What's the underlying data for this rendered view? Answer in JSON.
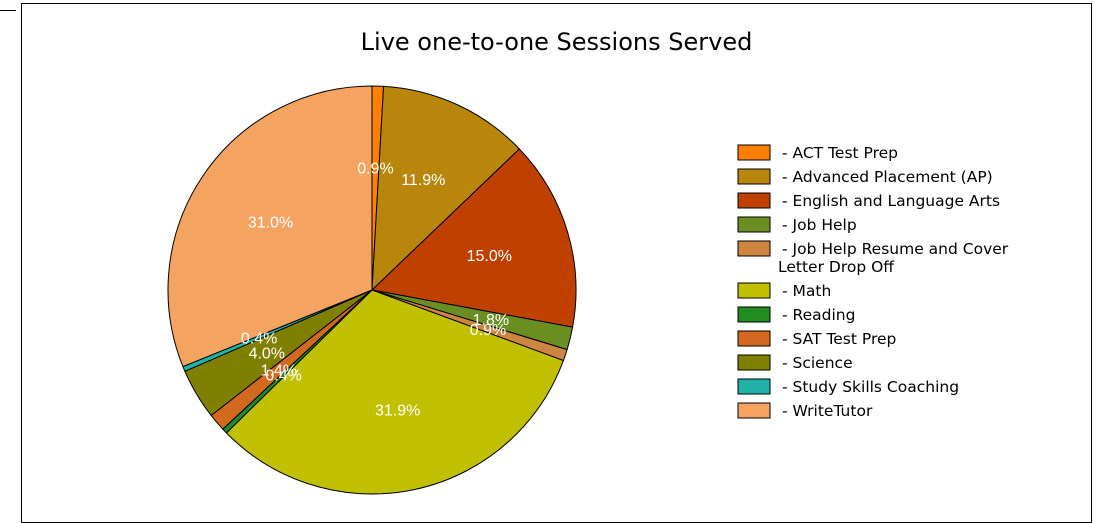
{
  "chart_data": {
    "type": "pie",
    "title": "Live one-to-one Sessions Served",
    "start_angle_deg": 90,
    "direction": "clockwise",
    "slices": [
      {
        "name": "ACT Test Prep",
        "value": 0.9,
        "label": "0.9%",
        "color": "#ff8000"
      },
      {
        "name": "Advanced Placement (AP)",
        "value": 11.9,
        "label": "11.9%",
        "color": "#b8860b"
      },
      {
        "name": "English and Language Arts",
        "value": 15.0,
        "label": "15.0%",
        "color": "#c04000"
      },
      {
        "name": "Job Help",
        "value": 1.8,
        "label": "1.8%",
        "color": "#6b8e23"
      },
      {
        "name": "Job Help Resume and Cover Letter Drop Off",
        "value": 0.9,
        "label": "0.9%",
        "color": "#cd853f"
      },
      {
        "name": "Math",
        "value": 31.9,
        "label": "31.9%",
        "color": "#c0c000"
      },
      {
        "name": "Reading",
        "value": 0.4,
        "label": "0.4%",
        "color": "#228b22"
      },
      {
        "name": "SAT Test Prep",
        "value": 1.4,
        "label": "1.4%",
        "color": "#d2691e"
      },
      {
        "name": "Science",
        "value": 4.0,
        "label": "4.0%",
        "color": "#808000"
      },
      {
        "name": "Study Skills Coaching",
        "value": 0.4,
        "label": "0.4%",
        "color": "#20b2aa"
      },
      {
        "name": "WriteTutor",
        "value": 31.0,
        "label": "31.0%",
        "color": "#f4a460"
      }
    ],
    "legend": {
      "placement": "right",
      "items": [
        {
          "text": "- ACT Test Prep",
          "color": "#ff8000"
        },
        {
          "text": "- Advanced Placement (AP)",
          "color": "#b8860b"
        },
        {
          "text": "- English and Language Arts",
          "color": "#c04000"
        },
        {
          "text": "- Job Help",
          "color": "#6b8e23"
        },
        {
          "text": [
            "- Job Help Resume and Cover",
            "Letter Drop Off"
          ],
          "color": "#cd853f"
        },
        {
          "text": "- Math",
          "color": "#c0c000"
        },
        {
          "text": "- Reading",
          "color": "#228b22"
        },
        {
          "text": "- SAT Test Prep",
          "color": "#d2691e"
        },
        {
          "text": "- Science",
          "color": "#808000"
        },
        {
          "text": "- Study Skills Coaching",
          "color": "#20b2aa"
        },
        {
          "text": "- WriteTutor",
          "color": "#f4a460"
        }
      ]
    }
  }
}
